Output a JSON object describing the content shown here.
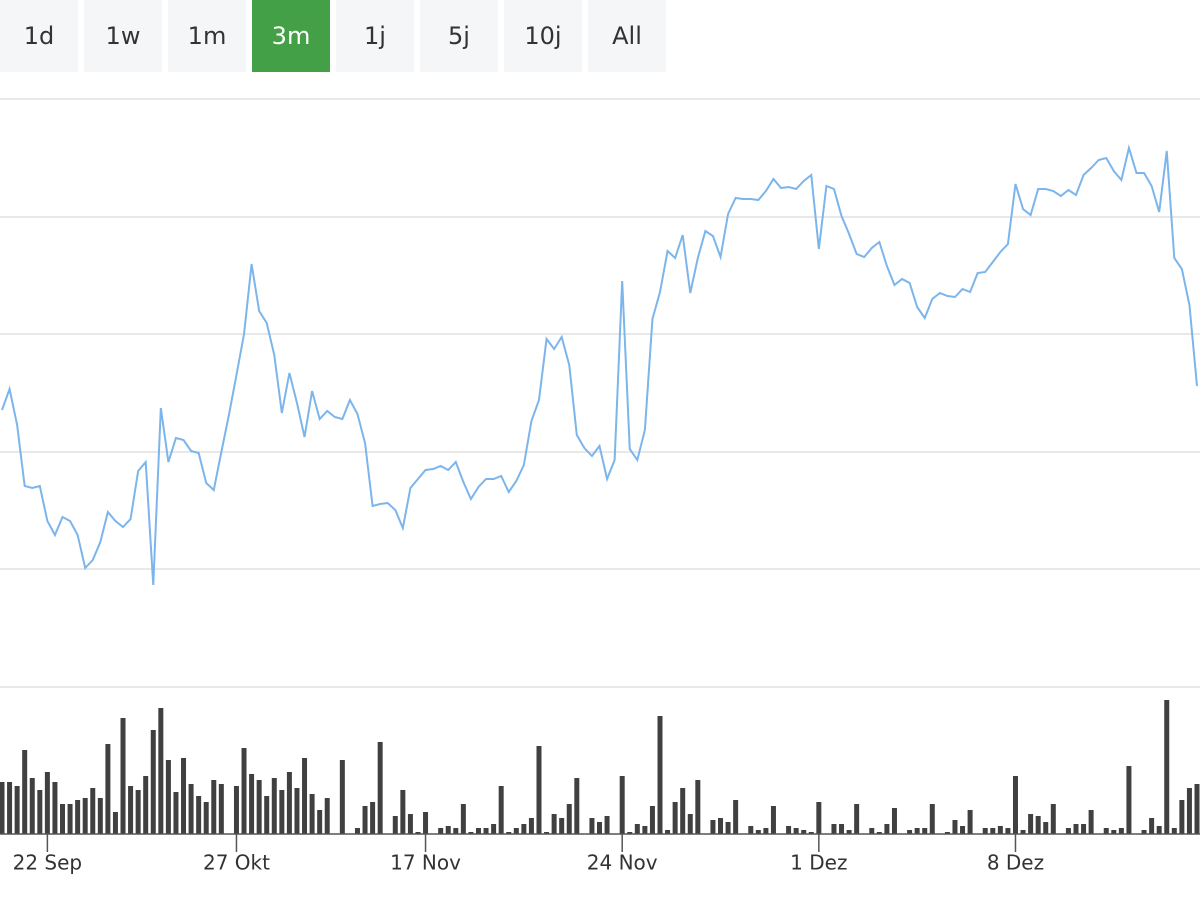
{
  "range_buttons": [
    "1d",
    "1w",
    "1m",
    "3m",
    "1j",
    "5j",
    "10j",
    "All"
  ],
  "selected_button": "3m",
  "chart_data": {
    "type": "line",
    "color": "#7cb5ec",
    "values": [
      277,
      298,
      262,
      201,
      199,
      201,
      166,
      152,
      170,
      166,
      152,
      119,
      127,
      145,
      175,
      166,
      160,
      168,
      216,
      225,
      102,
      279,
      225,
      249,
      247,
      236,
      234,
      204,
      197,
      235,
      272,
      312,
      353,
      423,
      376,
      364,
      332,
      274,
      314,
      284,
      250,
      296,
      268,
      276,
      270,
      268,
      287,
      273,
      244,
      181,
      183,
      184,
      177,
      159,
      199,
      208,
      217,
      218,
      221,
      217,
      225,
      205,
      188,
      200,
      208,
      208,
      211,
      195,
      206,
      222,
      266,
      287,
      348,
      338,
      350,
      322,
      252,
      239,
      231,
      241,
      208,
      227,
      406,
      238,
      227,
      257,
      368,
      395,
      436,
      429,
      452,
      394,
      429,
      456,
      451,
      430,
      473,
      489,
      488,
      488,
      487,
      496,
      508,
      499,
      500,
      498,
      506,
      512,
      438,
      501,
      498,
      471,
      453,
      433,
      430,
      439,
      445,
      421,
      402,
      408,
      404,
      380,
      369,
      388,
      394,
      391,
      390,
      398,
      395,
      414,
      415,
      425,
      435,
      443,
      503,
      478,
      472,
      498,
      498,
      496,
      491,
      497,
      492,
      512,
      519,
      527,
      529,
      516,
      507,
      539,
      514,
      514,
      501,
      475,
      536,
      429,
      418,
      382,
      301
    ],
    "volume_color": "#404040",
    "volume": [
      52,
      52,
      48,
      84,
      56,
      44,
      62,
      52,
      30,
      30,
      34,
      36,
      46,
      36,
      90,
      22,
      116,
      48,
      44,
      58,
      104,
      126,
      74,
      42,
      76,
      50,
      38,
      32,
      54,
      50,
      0,
      48,
      86,
      60,
      54,
      38,
      56,
      44,
      62,
      46,
      76,
      40,
      24,
      36,
      0,
      74,
      0,
      6,
      28,
      32,
      92,
      0,
      18,
      44,
      20,
      2,
      22,
      0,
      6,
      8,
      6,
      30,
      2,
      6,
      6,
      10,
      48,
      2,
      6,
      10,
      16,
      88,
      2,
      20,
      16,
      30,
      56,
      0,
      16,
      12,
      18,
      0,
      58,
      2,
      10,
      8,
      28,
      118,
      4,
      32,
      46,
      20,
      54,
      0,
      14,
      16,
      12,
      34,
      0,
      8,
      4,
      6,
      28,
      0,
      8,
      6,
      4,
      2,
      32,
      0,
      10,
      10,
      4,
      30,
      0,
      6,
      2,
      10,
      26,
      0,
      4,
      6,
      6,
      30,
      0,
      2,
      14,
      8,
      24,
      0,
      6,
      6,
      8,
      6,
      58,
      4,
      20,
      18,
      12,
      30,
      0,
      6,
      10,
      10,
      24,
      0,
      6,
      4,
      6,
      68,
      0,
      4,
      16,
      8,
      134,
      6,
      34,
      46,
      50
    ],
    "ylim": [
      0,
      588
    ],
    "yticks": [
      0,
      118,
      235,
      353,
      470,
      588
    ],
    "volume_lim": [
      0,
      140
    ],
    "xlim": [
      0,
      158
    ],
    "xticks": [
      {
        "value": 6,
        "label": "22 Sep"
      },
      {
        "value": 31,
        "label": "27 Okt"
      },
      {
        "value": 56,
        "label": "17 Nov"
      },
      {
        "value": 82,
        "label": "24 Nov"
      },
      {
        "value": 108,
        "label": "1 Dez"
      },
      {
        "value": 134,
        "label": "8 Dez"
      }
    ],
    "grid": true
  }
}
